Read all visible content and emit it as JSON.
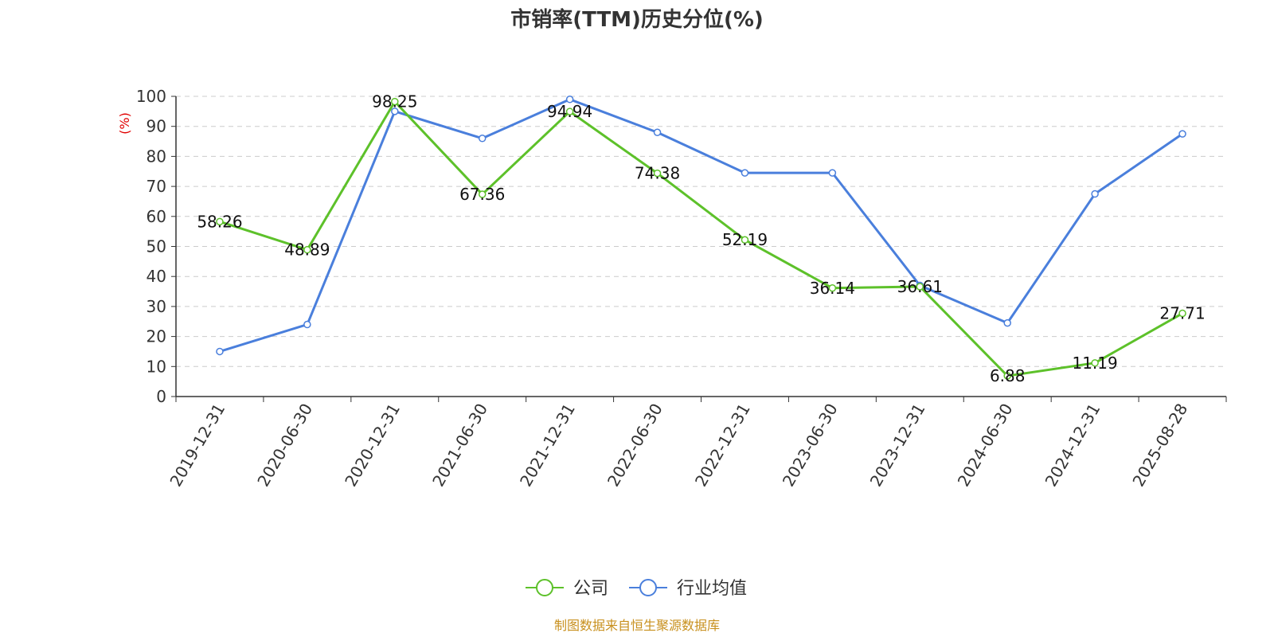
{
  "chart_data": {
    "type": "line",
    "title": "市销率(TTM)历史分位(%)",
    "ylabel": "(%)",
    "xlabel": "",
    "ylim": [
      0,
      100
    ],
    "yticks": [
      0,
      10,
      20,
      30,
      40,
      50,
      60,
      70,
      80,
      90,
      100
    ],
    "grid": true,
    "legend_position": "bottom-center",
    "categories": [
      "2019-12-31",
      "2020-06-30",
      "2020-12-31",
      "2021-06-30",
      "2021-12-31",
      "2022-06-30",
      "2022-12-31",
      "2023-06-30",
      "2023-12-31",
      "2024-06-30",
      "2024-12-31",
      "2025-08-28"
    ],
    "series": [
      {
        "name": "公司",
        "color": "#5dc12a",
        "values": [
          58.26,
          48.89,
          98.25,
          67.36,
          94.94,
          74.38,
          52.19,
          36.14,
          36.61,
          6.88,
          11.19,
          27.71
        ],
        "labels": [
          "58.26",
          "48.89",
          "98.25",
          "67.36",
          "94.94",
          "74.38",
          "52.19",
          "36.14",
          "36.61",
          "6.88",
          "11.19",
          "27.71"
        ]
      },
      {
        "name": "行业均值",
        "color": "#4a7fdc",
        "values": [
          15,
          24,
          95,
          86,
          99,
          88,
          74.5,
          74.5,
          37,
          24.5,
          67.5,
          87.5
        ]
      }
    ],
    "source": "制图数据来自恒生聚源数据库",
    "source_color": "#c8901e",
    "ylabel_color": "#e00000"
  }
}
